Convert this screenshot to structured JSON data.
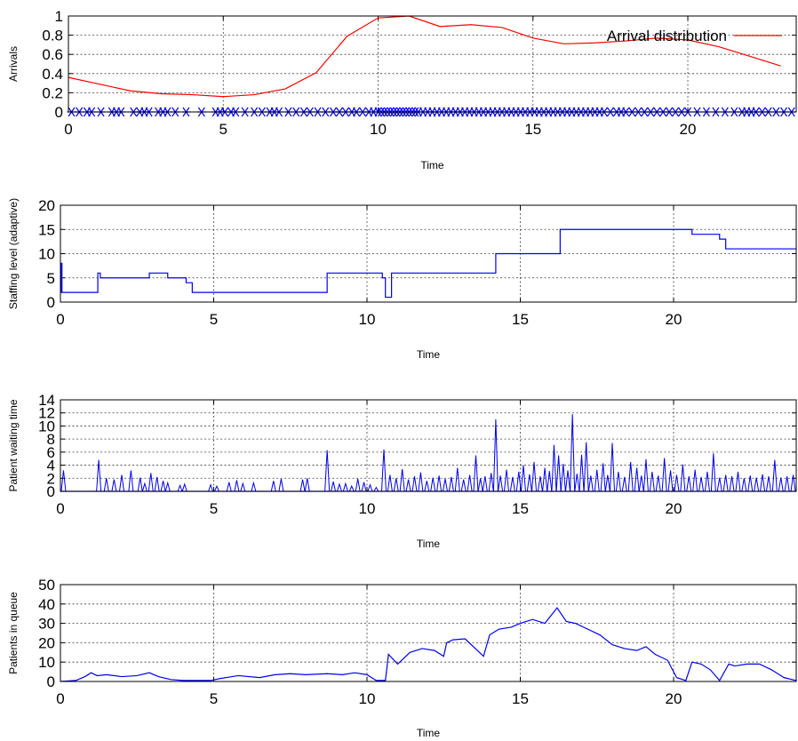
{
  "chart_data": [
    {
      "type": "line",
      "xlabel": "Time",
      "ylabel": "Arrivals",
      "xlim": [
        0,
        23.5
      ],
      "ylim": [
        0,
        1
      ],
      "xticks": [
        0,
        5,
        10,
        15,
        20
      ],
      "xtick_labels": [
        "0",
        "5",
        "10",
        "15",
        "20"
      ],
      "yticks": [
        0,
        0.2,
        0.4,
        0.6,
        0.8,
        1
      ],
      "ytick_labels": [
        "0",
        "0.2",
        "0.4",
        "0.6",
        "0.8",
        "1"
      ],
      "grid": true,
      "legend": "top-right",
      "series": [
        {
          "name": "Arrival distribution",
          "kind": "line",
          "color": "#ff0000",
          "x": [
            0,
            1,
            2,
            3,
            4,
            5,
            6,
            7,
            8,
            9,
            10,
            11,
            12,
            13,
            14,
            15,
            16,
            17,
            18,
            19,
            20,
            21,
            22,
            23
          ],
          "y": [
            0.36,
            0.29,
            0.22,
            0.19,
            0.18,
            0.16,
            0.18,
            0.24,
            0.41,
            0.79,
            0.98,
            1.0,
            0.89,
            0.91,
            0.88,
            0.77,
            0.71,
            0.72,
            0.74,
            0.77,
            0.75,
            0.68,
            0.58,
            0.48
          ]
        },
        {
          "kind": "points",
          "marker": "asterisk",
          "color": "#0000ee",
          "y_value": 0,
          "x": [
            0.1,
            0.35,
            0.6,
            0.75,
            1.05,
            1.4,
            1.55,
            1.7,
            2.1,
            2.3,
            2.45,
            2.6,
            2.9,
            3.05,
            3.2,
            3.45,
            3.8,
            4.3,
            4.75,
            4.9,
            5.05,
            5.25,
            5.4,
            5.7,
            6.0,
            6.25,
            6.5,
            6.65,
            6.8,
            7.1,
            7.35,
            7.6,
            7.8,
            8.05,
            8.3,
            8.55,
            8.75,
            8.95,
            9.15,
            9.3,
            9.5,
            9.7,
            9.85,
            10.0,
            10.1,
            10.2,
            10.3,
            10.4,
            10.5,
            10.6,
            10.7,
            10.8,
            10.9,
            11.0,
            11.1,
            11.2,
            11.3,
            11.45,
            11.6,
            11.75,
            11.9,
            12.05,
            12.2,
            12.35,
            12.5,
            12.65,
            12.8,
            12.95,
            13.1,
            13.25,
            13.4,
            13.55,
            13.7,
            13.85,
            14.0,
            14.15,
            14.3,
            14.45,
            14.6,
            14.75,
            14.9,
            15.05,
            15.2,
            15.35,
            15.5,
            15.65,
            15.8,
            15.95,
            16.1,
            16.25,
            16.4,
            16.55,
            16.7,
            16.85,
            17.0,
            17.15,
            17.3,
            17.5,
            17.7,
            17.85,
            18.0,
            18.2,
            18.4,
            18.6,
            18.8,
            19.0,
            19.2,
            19.4,
            19.6,
            19.8,
            20.0,
            20.3,
            20.6,
            20.9,
            21.2,
            21.5,
            21.75,
            21.9,
            22.05,
            22.2,
            22.4,
            22.6,
            22.85,
            23.1,
            23.35
          ]
        }
      ]
    },
    {
      "type": "line",
      "xlabel": "Time",
      "ylabel": "Staffing level (adaptive)",
      "xlim": [
        0,
        24
      ],
      "ylim": [
        0,
        20
      ],
      "xticks": [
        0,
        5,
        10,
        15,
        20
      ],
      "xtick_labels": [
        "0",
        "5",
        "10",
        "15",
        "20"
      ],
      "yticks": [
        0,
        5,
        10,
        15,
        20
      ],
      "ytick_labels": [
        "0",
        "5",
        "10",
        "15",
        "20"
      ],
      "grid": true,
      "series": [
        {
          "kind": "step",
          "color": "#0000ee",
          "x": [
            0,
            0.03,
            0.05,
            1.2,
            1.22,
            1.3,
            2.9,
            3.2,
            3.5,
            3.9,
            4.1,
            4.3,
            8.7,
            10.5,
            10.6,
            10.7,
            10.8,
            14.2,
            16.3,
            20.6,
            21.5,
            21.7,
            21.8,
            24
          ],
          "y": [
            2,
            8,
            2,
            2,
            6,
            5,
            6,
            6,
            5,
            5,
            4,
            2,
            6,
            5,
            1,
            1,
            6,
            10,
            15,
            14,
            13,
            11,
            11,
            11
          ]
        }
      ]
    },
    {
      "type": "line",
      "xlabel": "Time",
      "ylabel": "Patient waiting time",
      "xlim": [
        0,
        24
      ],
      "ylim": [
        0,
        14
      ],
      "xticks": [
        0,
        5,
        10,
        15,
        20
      ],
      "xtick_labels": [
        "0",
        "5",
        "10",
        "15",
        "20"
      ],
      "yticks": [
        0,
        2,
        4,
        6,
        8,
        10,
        12,
        14
      ],
      "ytick_labels": [
        "0",
        "2",
        "4",
        "6",
        "8",
        "10",
        "12",
        "14"
      ],
      "grid": true,
      "series": [
        {
          "kind": "spikes",
          "color": "#0000ee",
          "x": [
            0.1,
            1.25,
            1.5,
            1.75,
            2.0,
            2.3,
            2.6,
            2.75,
            2.95,
            3.15,
            3.35,
            3.5,
            3.9,
            4.05,
            4.9,
            5.1,
            5.5,
            5.75,
            5.95,
            6.3,
            6.95,
            7.2,
            7.9,
            8.05,
            8.7,
            8.9,
            9.1,
            9.3,
            9.5,
            9.7,
            9.9,
            10.1,
            10.3,
            10.55,
            10.75,
            10.95,
            11.15,
            11.35,
            11.55,
            11.75,
            11.95,
            12.15,
            12.35,
            12.55,
            12.75,
            12.95,
            13.15,
            13.35,
            13.55,
            13.7,
            13.85,
            14.05,
            14.2,
            14.35,
            14.55,
            14.75,
            14.95,
            15.1,
            15.3,
            15.45,
            15.65,
            15.8,
            15.95,
            16.1,
            16.25,
            16.4,
            16.55,
            16.7,
            16.85,
            17.0,
            17.15,
            17.3,
            17.5,
            17.7,
            17.85,
            18.0,
            18.2,
            18.4,
            18.6,
            18.8,
            18.95,
            19.1,
            19.3,
            19.5,
            19.7,
            19.9,
            20.1,
            20.3,
            20.5,
            20.7,
            20.9,
            21.1,
            21.3,
            21.5,
            21.7,
            21.9,
            22.1,
            22.3,
            22.5,
            22.7,
            22.9,
            23.1,
            23.3,
            23.5,
            23.7,
            23.9
          ],
          "y": [
            3.2,
            4.8,
            2.0,
            1.8,
            2.5,
            3.2,
            2.1,
            1.2,
            2.8,
            2.2,
            1.6,
            1.3,
            0.9,
            1.1,
            1.0,
            0.8,
            1.4,
            1.7,
            1.2,
            1.3,
            1.6,
            1.9,
            1.8,
            2.0,
            6.3,
            1.5,
            1.1,
            1.2,
            0.8,
            1.9,
            1.4,
            1.0,
            0.6,
            6.4,
            2.5,
            2.0,
            3.4,
            1.8,
            2.3,
            2.9,
            1.6,
            2.1,
            2.4,
            1.9,
            2.2,
            3.6,
            1.8,
            2.5,
            5.5,
            2.0,
            2.3,
            2.8,
            11.0,
            2.4,
            3.3,
            2.2,
            3.0,
            4.0,
            2.6,
            4.5,
            2.3,
            3.6,
            3.1,
            7.1,
            5.5,
            4.2,
            3.2,
            11.8,
            2.7,
            5.6,
            7.5,
            2.4,
            3.3,
            4.3,
            2.5,
            7.4,
            3.0,
            2.2,
            4.5,
            3.6,
            2.4,
            4.9,
            3.0,
            2.4,
            5.1,
            3.2,
            2.5,
            4.1,
            2.3,
            3.3,
            2.2,
            3.0,
            5.8,
            2.1,
            2.5,
            2.3,
            3.0,
            2.0,
            2.4,
            2.1,
            2.6,
            2.3,
            4.8,
            2.1,
            2.3,
            2.5
          ]
        }
      ]
    },
    {
      "type": "line",
      "xlabel": "Time",
      "ylabel": "Patients in queue",
      "xlim": [
        0,
        24
      ],
      "ylim": [
        0,
        50
      ],
      "xticks": [
        0,
        5,
        10,
        15,
        20
      ],
      "xtick_labels": [
        "0",
        "5",
        "10",
        "15",
        "20"
      ],
      "yticks": [
        0,
        10,
        20,
        30,
        40,
        50
      ],
      "ytick_labels": [
        "0",
        "10",
        "20",
        "30",
        "40",
        "50"
      ],
      "grid": true,
      "series": [
        {
          "kind": "line",
          "color": "#0000ee",
          "x": [
            0,
            0.5,
            0.8,
            1.0,
            1.2,
            1.5,
            2.0,
            2.5,
            2.9,
            3.2,
            3.6,
            4.0,
            4.5,
            4.9,
            5.2,
            5.8,
            6.5,
            7.0,
            7.5,
            8.0,
            8.7,
            9.2,
            9.6,
            10.0,
            10.3,
            10.6,
            10.7,
            11.0,
            11.4,
            11.8,
            12.2,
            12.5,
            12.6,
            12.8,
            13.2,
            13.6,
            13.8,
            14.0,
            14.3,
            14.7,
            15.0,
            15.4,
            15.8,
            16.0,
            16.2,
            16.5,
            16.8,
            17.2,
            17.6,
            18.0,
            18.4,
            18.8,
            19.1,
            19.4,
            19.8,
            20.1,
            20.4,
            20.6,
            20.9,
            21.2,
            21.5,
            21.8,
            22.0,
            22.4,
            22.8,
            23.2,
            23.6,
            24.0
          ],
          "y": [
            0,
            0.5,
            2.5,
            4.5,
            3.0,
            3.5,
            2.5,
            3.0,
            4.5,
            2.5,
            1.0,
            0.5,
            0.5,
            0.5,
            1.5,
            3.0,
            2.0,
            3.5,
            4.0,
            3.5,
            4.0,
            3.5,
            4.5,
            3.5,
            0.5,
            0.5,
            14.0,
            9.0,
            15.0,
            17.0,
            16.0,
            13.0,
            20.0,
            21.5,
            22.0,
            16.0,
            13.0,
            24.0,
            27.0,
            28.0,
            30.0,
            32.0,
            30.0,
            34.0,
            38.0,
            31.0,
            30.0,
            27.0,
            24.0,
            19.0,
            17.0,
            16.0,
            18.0,
            14.0,
            11.0,
            2.0,
            0.5,
            10.0,
            9.0,
            6.0,
            0.5,
            9.0,
            8.0,
            9.0,
            9.0,
            6.0,
            2.0,
            0.5
          ]
        }
      ]
    }
  ]
}
